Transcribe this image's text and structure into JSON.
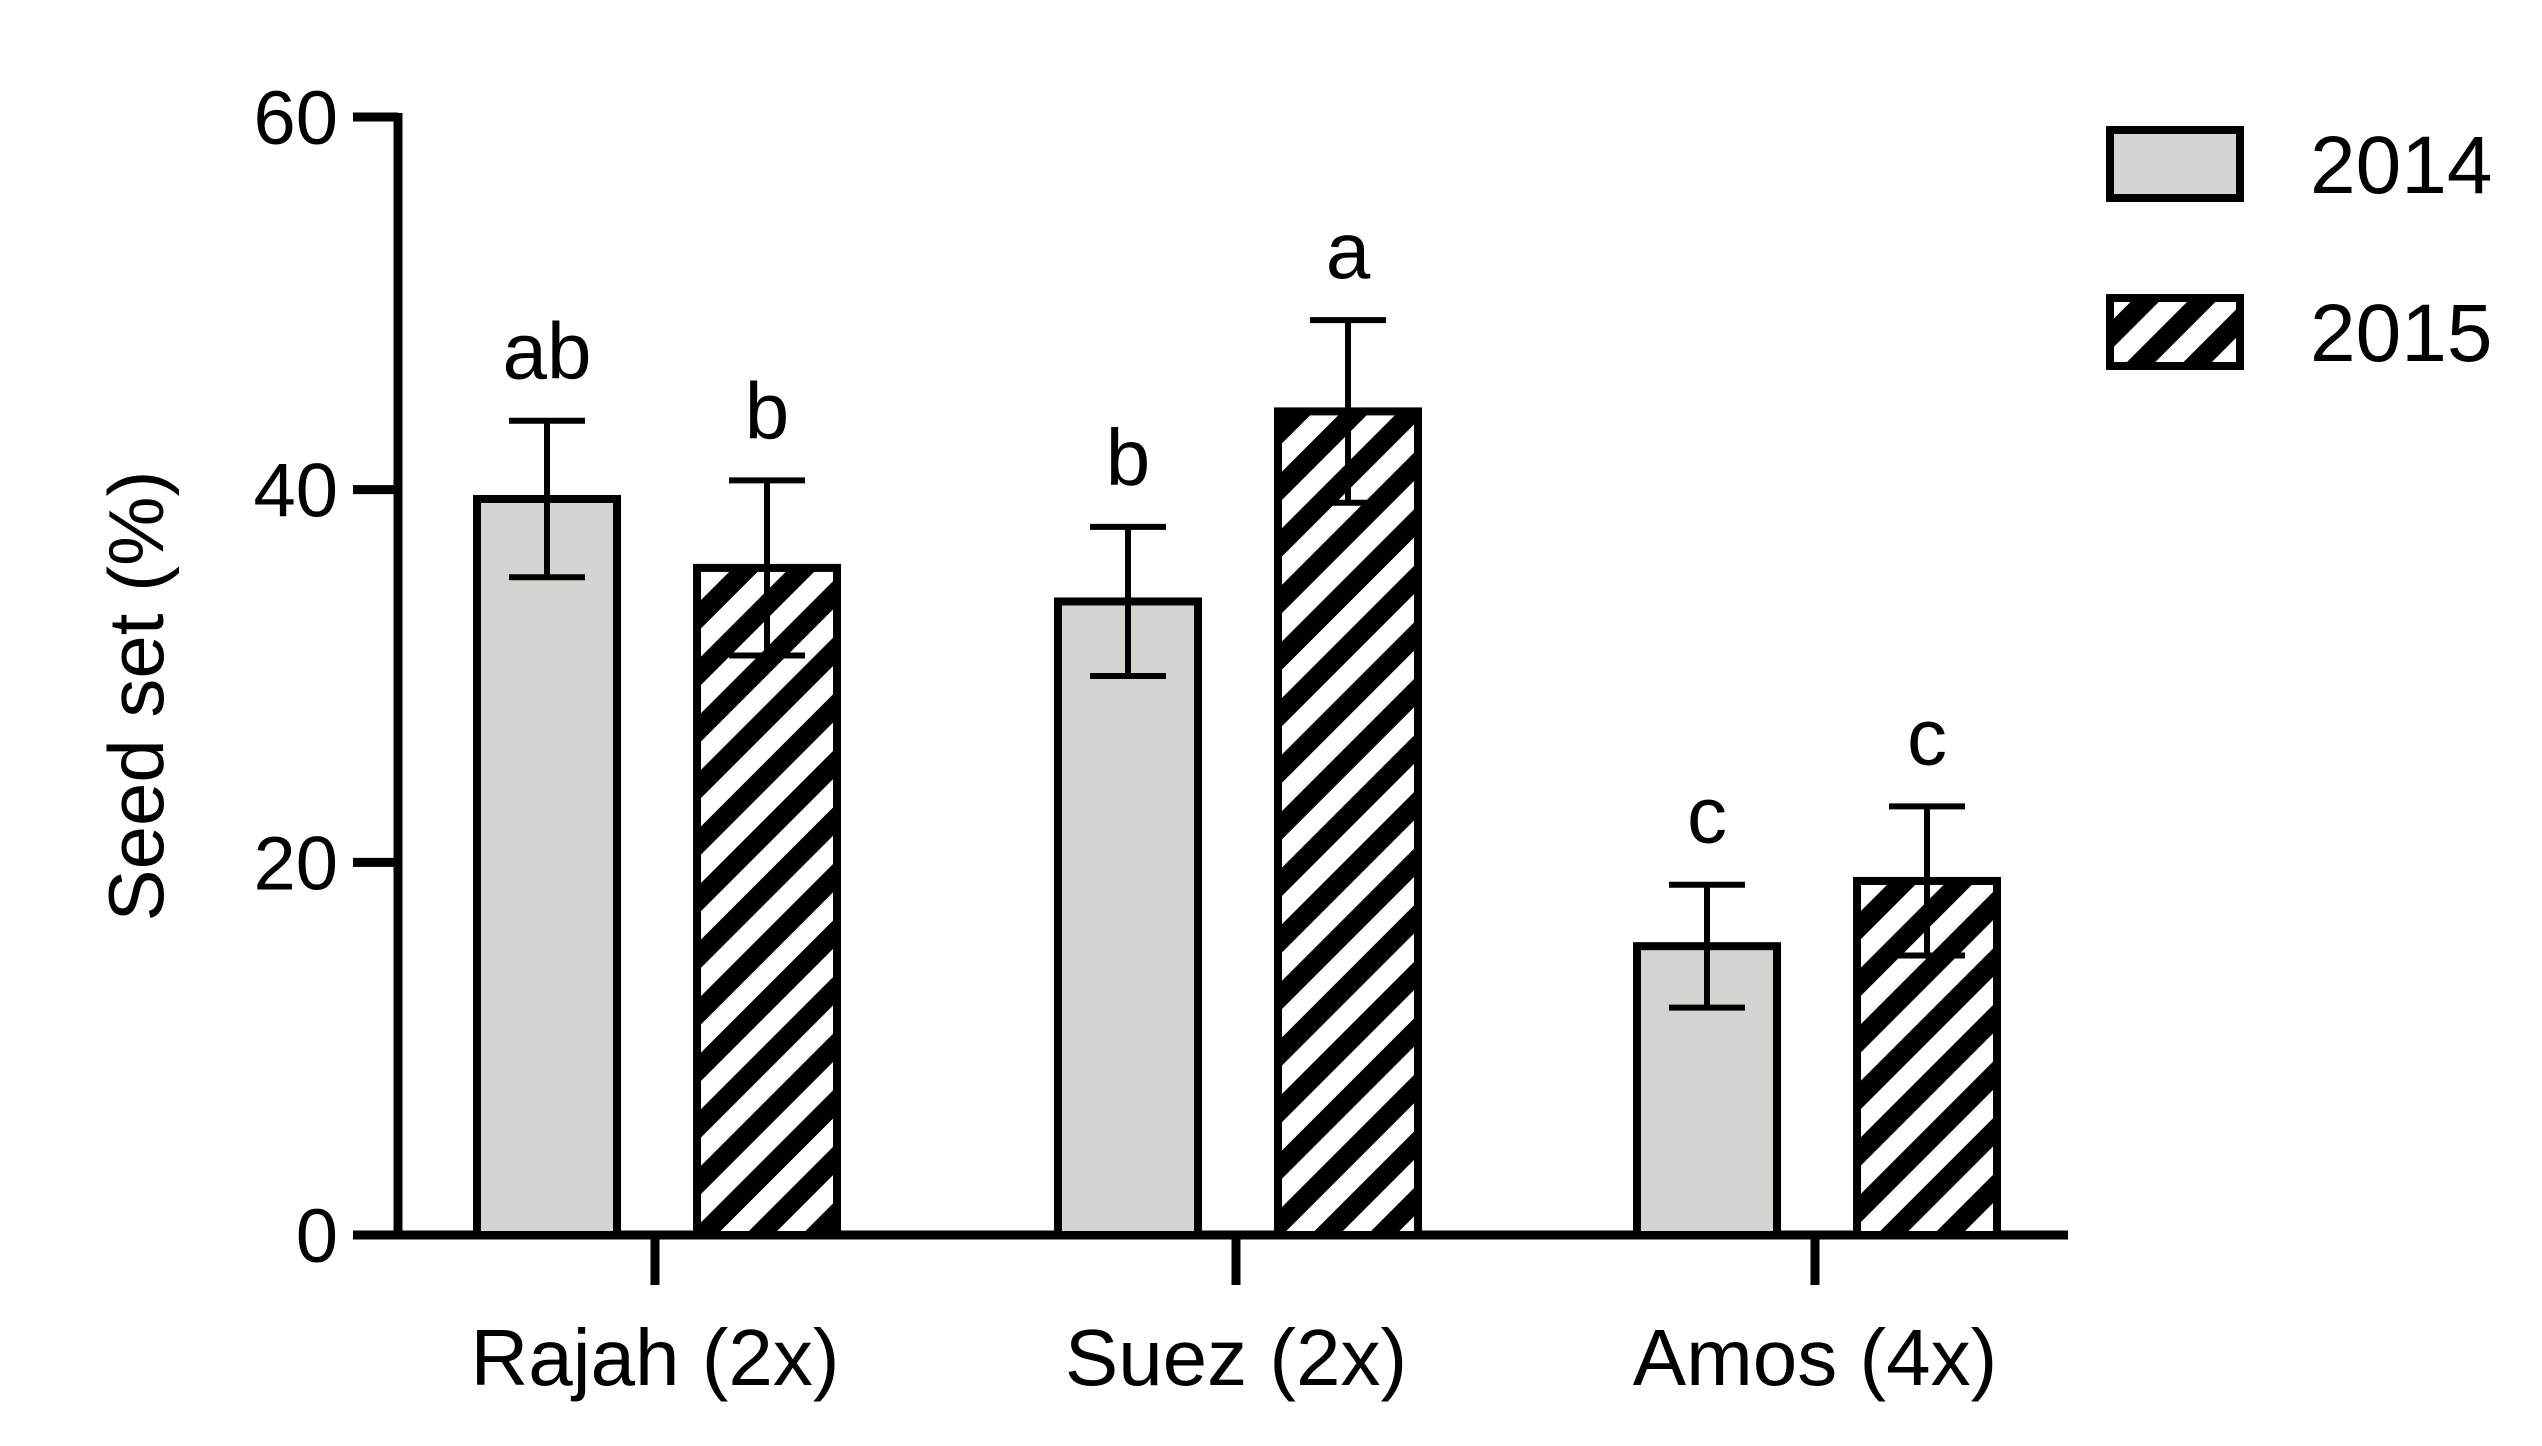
{
  "chart_data": {
    "type": "bar",
    "title": "",
    "ylabel": "Seed set (%)",
    "xlabel": "",
    "ylim": [
      0,
      60
    ],
    "yticks": [
      0,
      20,
      40,
      60
    ],
    "categories": [
      "Rajah (2x)",
      "Suez (2x)",
      "Amos (4x)"
    ],
    "series": [
      {
        "name": "2014",
        "fill": "#d4d4d0",
        "pattern": "solid",
        "values": [
          39.5,
          34.0,
          15.5
        ],
        "errors": [
          4.2,
          4.0,
          3.3
        ],
        "letters": [
          "ab",
          "b",
          "c"
        ]
      },
      {
        "name": "2015",
        "fill": "#ffffff",
        "pattern": "diagonal-stripes",
        "values": [
          35.8,
          44.2,
          19.0
        ],
        "errors": [
          4.7,
          4.9,
          4.0
        ],
        "letters": [
          "b",
          "a",
          "c"
        ]
      }
    ],
    "legend": {
      "position": "top-right"
    },
    "grid": false
  },
  "colors": {
    "axis": "#000000",
    "bar_2014": "#d4d4d0",
    "stripe": "#000000"
  }
}
